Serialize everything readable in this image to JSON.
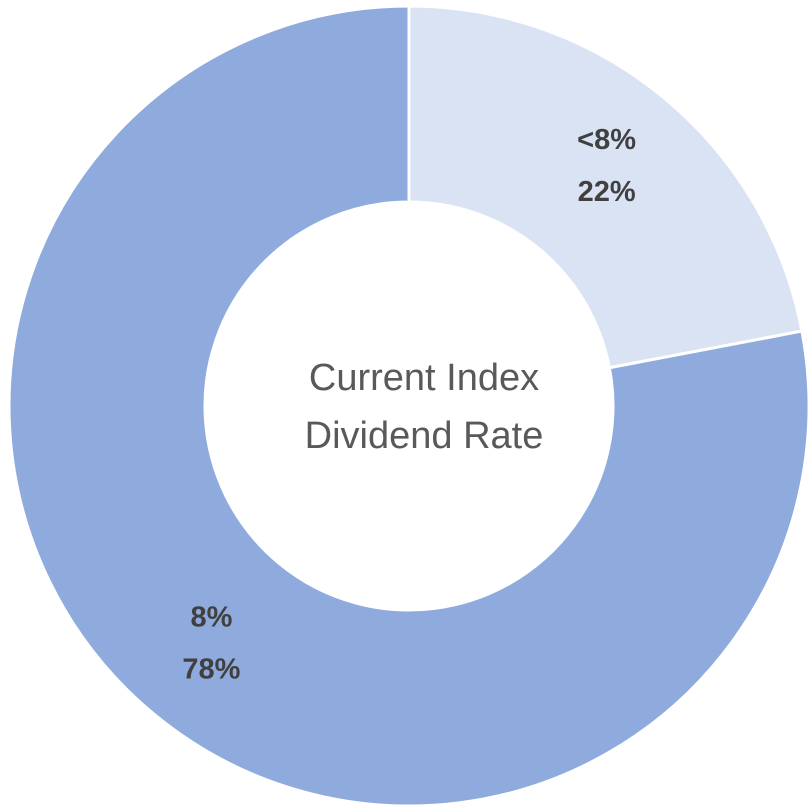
{
  "chart_data": {
    "type": "donut",
    "center_label": [
      "Current Index",
      "Dividend Rate"
    ],
    "categories": [
      "<8%",
      "8%"
    ],
    "values": [
      22,
      78
    ],
    "value_labels": [
      "22%",
      "78%"
    ],
    "colors": [
      "#dae3f3",
      "#8faadc"
    ]
  }
}
